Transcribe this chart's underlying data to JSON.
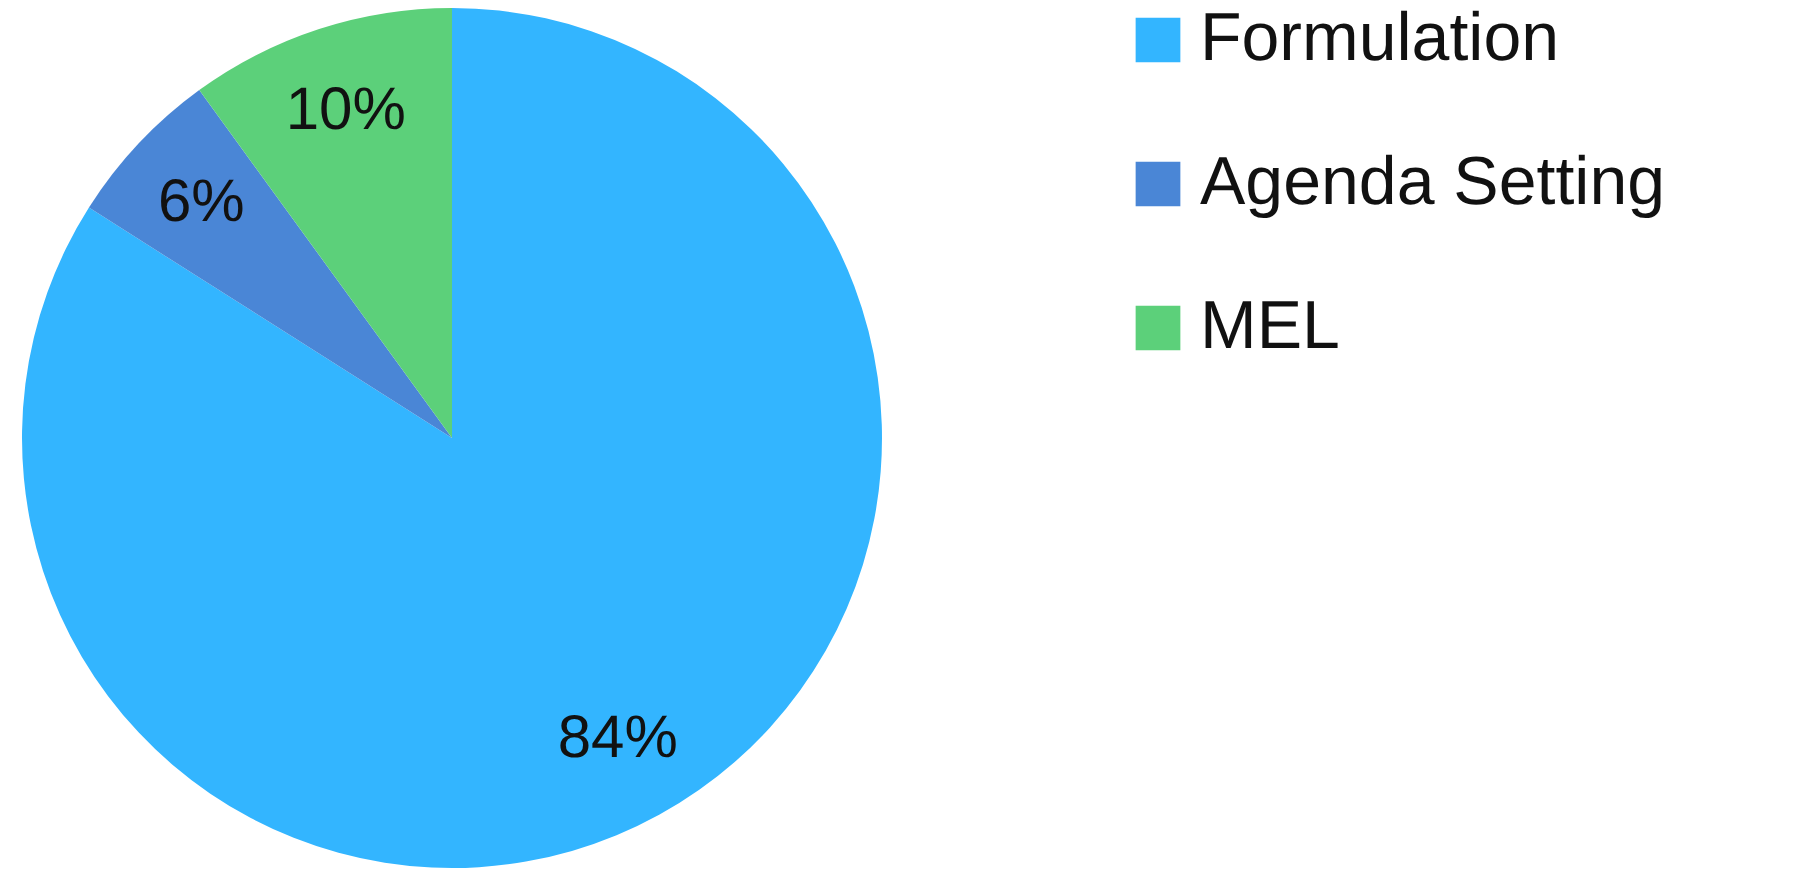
{
  "chart_data": {
    "type": "pie",
    "categories": [
      "Formulation",
      "Agenda Setting",
      "MEL"
    ],
    "values": [
      84,
      6,
      10
    ],
    "colors": [
      "#33b5ff",
      "#4a86d6",
      "#5cd07a"
    ],
    "value_labels": [
      "84%",
      "6%",
      "10%"
    ],
    "legend": "right"
  }
}
